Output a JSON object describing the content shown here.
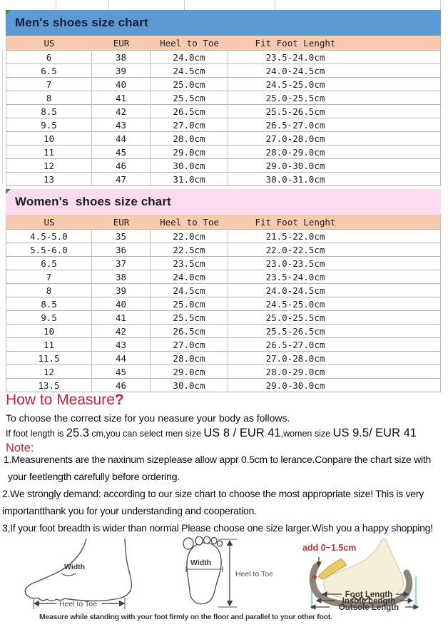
{
  "colors": {
    "mens_banner_bg": "#5b9ad2",
    "womens_banner_bg": "#fbdbee",
    "table_header_bg": "#f6cbae",
    "red_accent": "#cd2230",
    "gridline": "#b9b4b0",
    "teal_guide": "#9ed7d2",
    "corner_marker_green": "#35953f"
  },
  "mens_chart": {
    "title": "Men's shoes size chart",
    "columns": [
      "US",
      "EUR",
      "Heel to Toe",
      "Fit Foot Lenght"
    ],
    "rows": [
      [
        "6",
        "38",
        "24.0cm",
        "23.5-24.0cm"
      ],
      [
        "6.5",
        "39",
        "24.5cm",
        "24.0-24.5cm"
      ],
      [
        "7",
        "40",
        "25.0cm",
        "24.5-25.0cm"
      ],
      [
        "8",
        "41",
        "25.5cm",
        "25.0-25.5cm"
      ],
      [
        "8.5",
        "42",
        "26.5cm",
        "25.5-26.5cm"
      ],
      [
        "9.5",
        "43",
        "27.0cm",
        "26.5-27.0cm"
      ],
      [
        "10",
        "44",
        "28.0cm",
        "27.0-28.0cm"
      ],
      [
        "11",
        "45",
        "29.0cm",
        "28.0-29.0cm"
      ],
      [
        "12",
        "46",
        "30.0cm",
        "29.0-30.0cm"
      ],
      [
        "13",
        "47",
        "31.0cm",
        "30.0-31.0cm"
      ]
    ]
  },
  "womens_chart": {
    "title": "Women's  shoes size chart",
    "columns": [
      "US",
      "EUR",
      "Heel to Toe",
      "Fit Foot Lenght"
    ],
    "rows": [
      [
        "4.5-5.0",
        "35",
        "22.0cm",
        "21.5-22.0cm"
      ],
      [
        "5.5-6.0",
        "36",
        "22.5cm",
        "22.0-22.5cm"
      ],
      [
        "6.5",
        "37",
        "23.5cm",
        "23.0-23.5cm"
      ],
      [
        "7",
        "38",
        "24.0cm",
        "23.5-24.0cm"
      ],
      [
        "8",
        "39",
        "24.5cm",
        "24.0-24.5cm"
      ],
      [
        "8.5",
        "40",
        "25.0cm",
        "24.5-25.0cm"
      ],
      [
        "9.5",
        "41",
        "25.5cm",
        "25.0-25.5cm"
      ],
      [
        "10",
        "42",
        "26.5cm",
        "25.5-26.5cm"
      ],
      [
        "11",
        "43",
        "27.0cm",
        "26.5-27.0cm"
      ],
      [
        "11.5",
        "44",
        "28.0cm",
        "27.0-28.0cm"
      ],
      [
        "12",
        "45",
        "29.0cm",
        "28.0-29.0cm"
      ],
      [
        "13.5",
        "46",
        "30.0cm",
        "29.0-30.0cm"
      ]
    ]
  },
  "measure": {
    "title_text": "How to Measure",
    "title_q": "?",
    "intro": "To choose the correct size for you neasure your body as follows.",
    "size_line": {
      "s1": "If foot length is ",
      "b1": "25.3",
      "s2": " cm,you can select men size ",
      "b2": "US 8 / EUR 41",
      "s3": ",women size ",
      "b3": "US 9.5/ EUR 41"
    },
    "note_label": "Note:",
    "note_lines": [
      "1.Measurenents are the naxinum sizeplease allow appr 0.5cm to lerance.Conpare the chart size with",
      "your feetlength carefully before ordering.",
      "2.We strongly demand: according to our size chart to choose the most appropriate size! This is very",
      "importantthank you for your understanding and cooperation.",
      "3,If your foot breadth is wider than normal Please choose one size larger.Wish you a happy shopping!"
    ]
  },
  "diagrams": {
    "side_foot": {
      "width_label": "Width",
      "heel_to_toe_label": "Heel to Toe"
    },
    "footprint": {
      "width_label": "Width",
      "heel_to_toe_label": "Heel to Toe"
    },
    "shoe": {
      "add_label": "add 0~1.5cm",
      "foot_length": "Foot Length",
      "insole_length": "Insole Length",
      "outsole_length": "Outsole Length"
    },
    "caption": "Measure while standing with your foot firmly on the floor and parallel to your other foot."
  }
}
